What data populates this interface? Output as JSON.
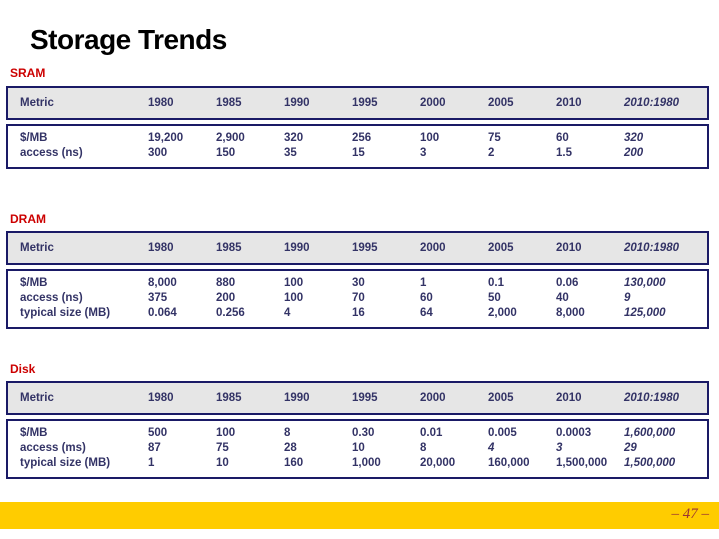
{
  "slide": {
    "title": "Storage Trends",
    "page_number": "– 47 –"
  },
  "colors": {
    "table_border_navy": "#1a1a66",
    "data_text_navy": "#333366",
    "section_label_red": "#cc0000",
    "header_row_bg": "#e6e6e6",
    "footer_bar_yellow": "#ffcc00",
    "page_number_red": "#993333"
  },
  "tables": [
    {
      "label": "SRAM",
      "headers": [
        "Metric",
        "1980",
        "1985",
        "1990",
        "1995",
        "2000",
        "2005",
        "2010",
        "2010:1980"
      ],
      "rows": [
        {
          "metric": "$/MB",
          "values": [
            "19,200",
            "2,900",
            "320",
            "256",
            "100",
            "75",
            "60",
            "320"
          ]
        },
        {
          "metric": "access (ns)",
          "values": [
            "300",
            "150",
            "35",
            "15",
            "3",
            "2",
            "1.5",
            "200"
          ]
        }
      ],
      "italic_cells": []
    },
    {
      "label": "DRAM",
      "headers": [
        "Metric",
        "1980",
        "1985",
        "1990",
        "1995",
        "2000",
        "2005",
        "2010",
        "2010:1980"
      ],
      "rows": [
        {
          "metric": "$/MB",
          "values": [
            "8,000",
            "880",
            "100",
            "30",
            "1",
            "0.1",
            "0.06",
            "130,000"
          ]
        },
        {
          "metric": "access (ns)",
          "values": [
            "375",
            "200",
            "100",
            "70",
            "60",
            "50",
            "40",
            "9"
          ]
        },
        {
          "metric": "typical size (MB)",
          "values": [
            "0.064",
            "0.256",
            "4",
            "16",
            "64",
            "2,000",
            "8,000",
            "125,000"
          ]
        }
      ],
      "italic_cells": []
    },
    {
      "label": "Disk",
      "headers": [
        "Metric",
        "1980",
        "1985",
        "1990",
        "1995",
        "2000",
        "2005",
        "2010",
        "2010:1980"
      ],
      "rows": [
        {
          "metric": "$/MB",
          "values": [
            "500",
            "100",
            "8",
            "0.30",
            "0.01",
            "0.005",
            "0.0003",
            "1,600,000"
          ]
        },
        {
          "metric": "access (ms)",
          "values": [
            "87",
            "75",
            "28",
            "10",
            "8",
            "4",
            "3",
            "29"
          ]
        },
        {
          "metric": "typical size (MB)",
          "values": [
            "1",
            "10",
            "160",
            "1,000",
            "20,000",
            "160,000",
            "1,500,000",
            "1,500,000"
          ]
        }
      ],
      "italic_cells": [
        [
          1,
          5
        ],
        [
          1,
          6
        ]
      ]
    }
  ]
}
